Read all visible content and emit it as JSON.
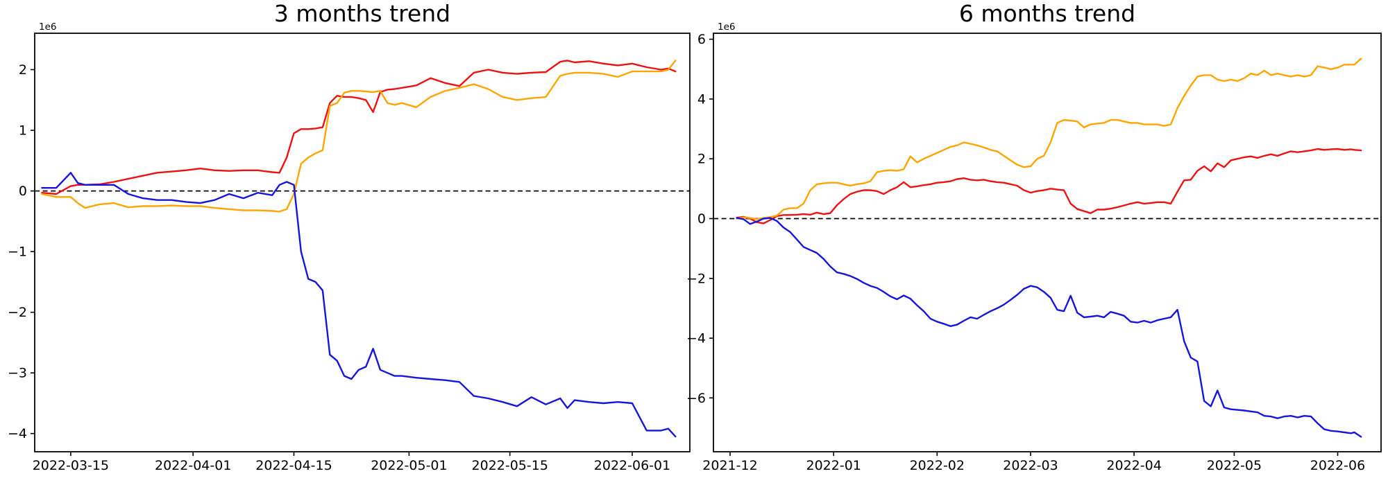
{
  "figure": {
    "background": "#ffffff",
    "axis_color": "#000000",
    "zero_line": {
      "style": "dashed",
      "color": "#000000"
    }
  },
  "chart_data": [
    {
      "type": "line",
      "title": "3 months trend",
      "offset_label": "1e6",
      "value_scale": 1000000,
      "xlabel": "",
      "ylabel": "",
      "grid": false,
      "legend": "none",
      "xlim": [
        "2022-03-10",
        "2022-06-09"
      ],
      "ylim": [
        -4.3,
        2.6
      ],
      "yticks": [
        2,
        1,
        0,
        -1,
        -2,
        -3,
        -4
      ],
      "xticks": [
        {
          "date": "2022-03-15",
          "label": "2022-03-15"
        },
        {
          "date": "2022-04-01",
          "label": "2022-04-01"
        },
        {
          "date": "2022-04-15",
          "label": "2022-04-15"
        },
        {
          "date": "2022-05-01",
          "label": "2022-05-01"
        },
        {
          "date": "2022-05-15",
          "label": "2022-05-15"
        },
        {
          "date": "2022-06-01",
          "label": "2022-06-01"
        }
      ],
      "dates": [
        "2022-03-11",
        "2022-03-13",
        "2022-03-15",
        "2022-03-16",
        "2022-03-17",
        "2022-03-19",
        "2022-03-21",
        "2022-03-23",
        "2022-03-25",
        "2022-03-27",
        "2022-03-29",
        "2022-03-31",
        "2022-04-02",
        "2022-04-04",
        "2022-04-06",
        "2022-04-08",
        "2022-04-10",
        "2022-04-12",
        "2022-04-13",
        "2022-04-14",
        "2022-04-15",
        "2022-04-16",
        "2022-04-17",
        "2022-04-18",
        "2022-04-19",
        "2022-04-20",
        "2022-04-21",
        "2022-04-22",
        "2022-04-23",
        "2022-04-24",
        "2022-04-25",
        "2022-04-26",
        "2022-04-27",
        "2022-04-28",
        "2022-04-29",
        "2022-04-30",
        "2022-05-02",
        "2022-05-04",
        "2022-05-06",
        "2022-05-08",
        "2022-05-10",
        "2022-05-12",
        "2022-05-14",
        "2022-05-16",
        "2022-05-18",
        "2022-05-20",
        "2022-05-22",
        "2022-05-23",
        "2022-05-24",
        "2022-05-26",
        "2022-05-28",
        "2022-05-30",
        "2022-06-01",
        "2022-06-03",
        "2022-06-05",
        "2022-06-06",
        "2022-06-07"
      ],
      "series": [
        {
          "name": "red",
          "color": "#ee1111",
          "values": [
            -0.03,
            -0.05,
            0.08,
            0.1,
            0.1,
            0.11,
            0.15,
            0.2,
            0.25,
            0.3,
            0.32,
            0.34,
            0.37,
            0.34,
            0.33,
            0.34,
            0.34,
            0.31,
            0.3,
            0.55,
            0.95,
            1.02,
            1.02,
            1.03,
            1.05,
            1.45,
            1.57,
            1.55,
            1.55,
            1.53,
            1.5,
            1.3,
            1.63,
            1.67,
            1.68,
            1.7,
            1.74,
            1.86,
            1.78,
            1.73,
            1.95,
            2.0,
            1.95,
            1.93,
            1.95,
            1.96,
            2.13,
            2.15,
            2.12,
            2.14,
            2.1,
            2.07,
            2.1,
            2.04,
            2.0,
            2.02,
            1.97
          ]
        },
        {
          "name": "orange",
          "color": "#ffa500",
          "values": [
            -0.05,
            -0.1,
            -0.1,
            -0.2,
            -0.28,
            -0.22,
            -0.2,
            -0.27,
            -0.25,
            -0.25,
            -0.24,
            -0.25,
            -0.25,
            -0.28,
            -0.3,
            -0.32,
            -0.32,
            -0.33,
            -0.34,
            -0.3,
            -0.05,
            0.45,
            0.55,
            0.62,
            0.67,
            1.4,
            1.45,
            1.62,
            1.65,
            1.65,
            1.64,
            1.63,
            1.65,
            1.45,
            1.42,
            1.45,
            1.38,
            1.55,
            1.65,
            1.7,
            1.76,
            1.68,
            1.55,
            1.5,
            1.53,
            1.55,
            1.9,
            1.93,
            1.95,
            1.95,
            1.93,
            1.88,
            1.97,
            1.97,
            1.97,
            2.0,
            2.15
          ]
        },
        {
          "name": "blue",
          "color": "#1515dd",
          "values": [
            0.05,
            0.05,
            0.3,
            0.13,
            0.1,
            0.1,
            0.1,
            -0.05,
            -0.12,
            -0.15,
            -0.15,
            -0.18,
            -0.2,
            -0.15,
            -0.05,
            -0.12,
            -0.03,
            -0.07,
            0.1,
            0.15,
            0.1,
            -1.0,
            -1.45,
            -1.5,
            -1.64,
            -2.7,
            -2.8,
            -3.05,
            -3.1,
            -2.95,
            -2.9,
            -2.6,
            -2.95,
            -3.0,
            -3.05,
            -3.05,
            -3.08,
            -3.1,
            -3.12,
            -3.15,
            -3.38,
            -3.42,
            -3.48,
            -3.55,
            -3.4,
            -3.52,
            -3.42,
            -3.58,
            -3.45,
            -3.48,
            -3.5,
            -3.48,
            -3.5,
            -3.95,
            -3.95,
            -3.92,
            -4.05
          ]
        }
      ]
    },
    {
      "type": "line",
      "title": "6 months trend",
      "offset_label": "1e6",
      "value_scale": 1000000,
      "xlabel": "",
      "ylabel": "",
      "grid": false,
      "legend": "none",
      "xlim": [
        "2021-11-26",
        "2022-06-14"
      ],
      "ylim": [
        -7.8,
        6.2
      ],
      "yticks": [
        6,
        4,
        2,
        0,
        -2,
        -4,
        -6
      ],
      "xticks": [
        {
          "date": "2021-12-01",
          "label": "2021-12"
        },
        {
          "date": "2022-01-01",
          "label": "2022-01"
        },
        {
          "date": "2022-02-01",
          "label": "2022-02"
        },
        {
          "date": "2022-03-01",
          "label": "2022-03"
        },
        {
          "date": "2022-04-01",
          "label": "2022-04"
        },
        {
          "date": "2022-05-01",
          "label": "2022-05"
        },
        {
          "date": "2022-06-01",
          "label": "2022-06"
        }
      ],
      "dates": [
        "2021-12-03",
        "2021-12-05",
        "2021-12-07",
        "2021-12-09",
        "2021-12-11",
        "2021-12-13",
        "2021-12-15",
        "2021-12-17",
        "2021-12-19",
        "2021-12-21",
        "2021-12-23",
        "2021-12-25",
        "2021-12-27",
        "2021-12-29",
        "2021-12-31",
        "2022-01-02",
        "2022-01-04",
        "2022-01-06",
        "2022-01-08",
        "2022-01-10",
        "2022-01-12",
        "2022-01-14",
        "2022-01-16",
        "2022-01-18",
        "2022-01-20",
        "2022-01-22",
        "2022-01-24",
        "2022-01-26",
        "2022-01-28",
        "2022-01-30",
        "2022-02-01",
        "2022-02-03",
        "2022-02-05",
        "2022-02-07",
        "2022-02-09",
        "2022-02-11",
        "2022-02-13",
        "2022-02-15",
        "2022-02-17",
        "2022-02-19",
        "2022-02-21",
        "2022-02-23",
        "2022-02-25",
        "2022-02-27",
        "2022-03-01",
        "2022-03-03",
        "2022-03-05",
        "2022-03-07",
        "2022-03-09",
        "2022-03-11",
        "2022-03-13",
        "2022-03-15",
        "2022-03-17",
        "2022-03-19",
        "2022-03-21",
        "2022-03-23",
        "2022-03-25",
        "2022-03-27",
        "2022-03-29",
        "2022-03-31",
        "2022-04-02",
        "2022-04-04",
        "2022-04-06",
        "2022-04-08",
        "2022-04-10",
        "2022-04-12",
        "2022-04-14",
        "2022-04-16",
        "2022-04-18",
        "2022-04-20",
        "2022-04-22",
        "2022-04-24",
        "2022-04-26",
        "2022-04-28",
        "2022-04-30",
        "2022-05-02",
        "2022-05-04",
        "2022-05-06",
        "2022-05-08",
        "2022-05-10",
        "2022-05-12",
        "2022-05-14",
        "2022-05-16",
        "2022-05-18",
        "2022-05-20",
        "2022-05-22",
        "2022-05-24",
        "2022-05-26",
        "2022-05-28",
        "2022-05-30",
        "2022-06-01",
        "2022-06-03",
        "2022-06-05",
        "2022-06-06",
        "2022-06-08"
      ],
      "series": [
        {
          "name": "red",
          "color": "#ee1111",
          "values": [
            0.03,
            0.06,
            0.0,
            -0.12,
            -0.16,
            -0.05,
            0.08,
            0.12,
            0.12,
            0.13,
            0.15,
            0.13,
            0.2,
            0.15,
            0.18,
            0.45,
            0.65,
            0.82,
            0.9,
            0.95,
            0.95,
            0.92,
            0.82,
            0.95,
            1.05,
            1.22,
            1.05,
            1.08,
            1.12,
            1.15,
            1.2,
            1.22,
            1.25,
            1.32,
            1.35,
            1.3,
            1.28,
            1.3,
            1.25,
            1.22,
            1.2,
            1.15,
            1.1,
            0.95,
            0.87,
            0.92,
            0.95,
            1.0,
            0.97,
            0.95,
            0.5,
            0.32,
            0.25,
            0.18,
            0.3,
            0.3,
            0.33,
            0.38,
            0.44,
            0.5,
            0.55,
            0.5,
            0.52,
            0.55,
            0.55,
            0.5,
            0.9,
            1.28,
            1.3,
            1.6,
            1.75,
            1.58,
            1.85,
            1.72,
            1.95,
            2.0,
            2.05,
            2.08,
            2.03,
            2.1,
            2.15,
            2.1,
            2.18,
            2.25,
            2.22,
            2.25,
            2.28,
            2.33,
            2.3,
            2.32,
            2.33,
            2.3,
            2.32,
            2.3,
            2.28
          ]
        },
        {
          "name": "orange",
          "color": "#ffa500",
          "values": [
            0.0,
            0.04,
            0.02,
            -0.02,
            0.02,
            0.05,
            0.1,
            0.3,
            0.35,
            0.35,
            0.5,
            0.95,
            1.15,
            1.18,
            1.2,
            1.2,
            1.15,
            1.1,
            1.15,
            1.18,
            1.25,
            1.55,
            1.6,
            1.62,
            1.6,
            1.65,
            2.08,
            1.88,
            2.0,
            2.1,
            2.2,
            2.3,
            2.4,
            2.45,
            2.55,
            2.5,
            2.45,
            2.38,
            2.3,
            2.25,
            2.1,
            1.95,
            1.8,
            1.72,
            1.75,
            2.0,
            2.1,
            2.55,
            3.2,
            3.3,
            3.28,
            3.25,
            3.05,
            3.15,
            3.18,
            3.2,
            3.3,
            3.3,
            3.25,
            3.2,
            3.2,
            3.15,
            3.15,
            3.15,
            3.1,
            3.15,
            3.7,
            4.1,
            4.45,
            4.75,
            4.8,
            4.8,
            4.65,
            4.6,
            4.65,
            4.6,
            4.7,
            4.85,
            4.8,
            4.95,
            4.8,
            4.85,
            4.8,
            4.75,
            4.8,
            4.75,
            4.8,
            5.1,
            5.05,
            5.0,
            5.05,
            5.15,
            5.15,
            5.15,
            5.35
          ]
        },
        {
          "name": "blue",
          "color": "#1515dd",
          "values": [
            0.02,
            -0.02,
            -0.18,
            -0.1,
            0.0,
            0.02,
            -0.08,
            -0.3,
            -0.45,
            -0.7,
            -0.95,
            -1.05,
            -1.15,
            -1.35,
            -1.6,
            -1.8,
            -1.85,
            -1.92,
            -2.02,
            -2.15,
            -2.25,
            -2.32,
            -2.45,
            -2.6,
            -2.7,
            -2.57,
            -2.68,
            -2.9,
            -3.1,
            -3.35,
            -3.45,
            -3.52,
            -3.6,
            -3.55,
            -3.42,
            -3.3,
            -3.35,
            -3.22,
            -3.1,
            -3.0,
            -2.88,
            -2.72,
            -2.55,
            -2.35,
            -2.25,
            -2.3,
            -2.45,
            -2.65,
            -3.05,
            -3.1,
            -2.58,
            -3.15,
            -3.3,
            -3.28,
            -3.25,
            -3.3,
            -3.12,
            -3.18,
            -3.25,
            -3.45,
            -3.48,
            -3.42,
            -3.48,
            -3.4,
            -3.35,
            -3.3,
            -3.05,
            -4.1,
            -4.65,
            -4.78,
            -6.1,
            -6.28,
            -5.75,
            -6.32,
            -6.38,
            -6.4,
            -6.42,
            -6.45,
            -6.48,
            -6.6,
            -6.62,
            -6.68,
            -6.62,
            -6.6,
            -6.65,
            -6.6,
            -6.62,
            -6.85,
            -7.05,
            -7.1,
            -7.12,
            -7.15,
            -7.18,
            -7.15,
            -7.3
          ]
        }
      ]
    }
  ]
}
